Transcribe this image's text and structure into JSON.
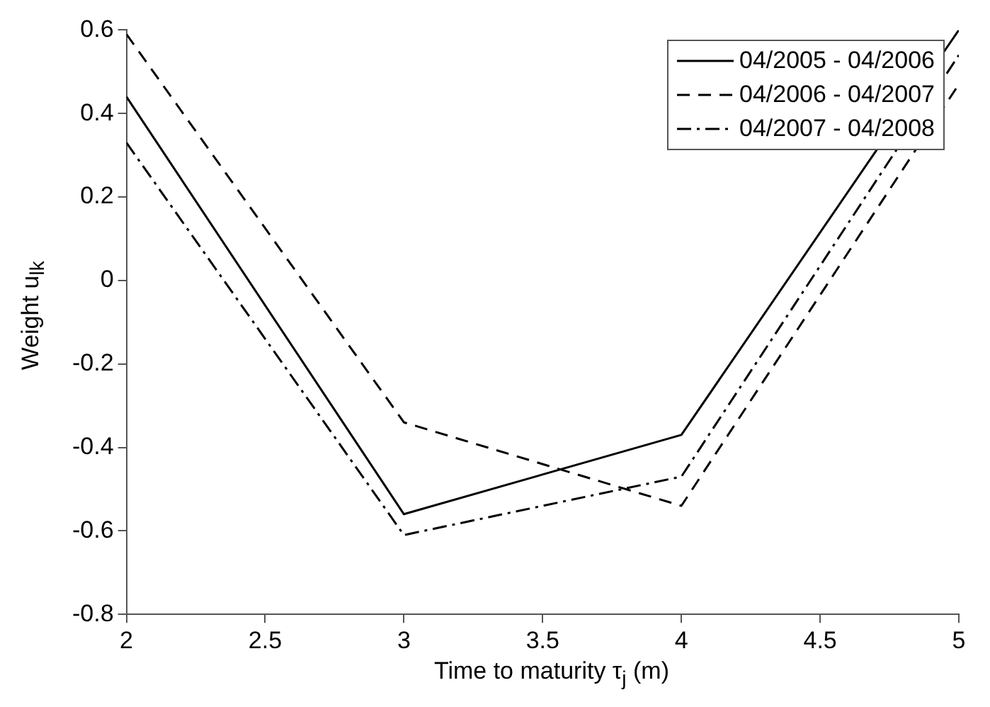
{
  "chart_data": {
    "type": "line",
    "xlabel": "Time to maturity τ$_{j}$ (m)",
    "ylabel": "Weight u$_{lk}$",
    "x": [
      2,
      3,
      4,
      5
    ],
    "series": [
      {
        "name": "04/2005 - 04/2006",
        "color": "#000000",
        "line_style": "solid",
        "values": [
          0.44,
          -0.56,
          -0.37,
          0.6
        ]
      },
      {
        "name": "04/2006 - 04/2007",
        "color": "#000000",
        "line_style": "dashed",
        "values": [
          0.59,
          -0.34,
          -0.54,
          0.47
        ]
      },
      {
        "name": "04/2007 - 04/2008",
        "color": "#000000",
        "line_style": "dashdot",
        "values": [
          0.33,
          -0.61,
          -0.47,
          0.54
        ]
      }
    ],
    "xlim": [
      2,
      5
    ],
    "xticks": [
      2,
      2.5,
      3,
      3.5,
      4,
      4.5,
      5
    ],
    "ylim": [
      -0.8,
      0.6
    ],
    "yticks": [
      -0.8,
      -0.6,
      -0.4,
      -0.2,
      0,
      0.2,
      0.4,
      0.6
    ],
    "grid": false,
    "legend": "top right",
    "marker": "none"
  }
}
